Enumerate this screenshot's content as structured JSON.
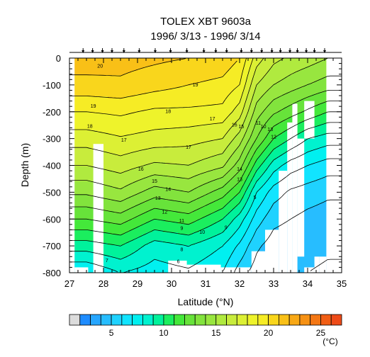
{
  "chart_data": {
    "type": "heatmap",
    "title": "TOLEX XBT 9603a",
    "subtitle": "1996/ 3/13 - 1996/ 3/14",
    "xlabel": "Latitude (°N)",
    "ylabel": "Depth (m)",
    "xlim": [
      27,
      35
    ],
    "ylim": [
      -800,
      0
    ],
    "x_ticks": [
      "27",
      "28",
      "29",
      "30",
      "31",
      "32",
      "33",
      "34",
      "35"
    ],
    "y_ticks": [
      "0",
      "-100",
      "-200",
      "-300",
      "-400",
      "-500",
      "-600",
      "-700",
      "-800"
    ],
    "colorbar": {
      "unit": "(°C)",
      "range": [
        2,
        27
      ],
      "tick_values": [
        5,
        10,
        15,
        20,
        25
      ],
      "tick_labels": [
        "5",
        "10",
        "15",
        "20",
        "25"
      ]
    },
    "stations_lat": [
      27.4,
      27.68,
      27.97,
      28.25,
      28.6,
      29.05,
      29.52,
      29.97,
      30.45,
      30.95,
      31.3,
      31.62,
      32.05,
      32.35,
      32.65,
      32.95,
      33.2,
      33.48,
      33.7,
      33.96,
      34.2,
      34.5
    ],
    "temperature_columns": [
      {
        "lat": 27.5,
        "T": [
          21.5,
          20.7,
          19.0,
          17.5,
          16.0,
          14.2,
          12.0,
          9.5,
          7.0
        ]
      },
      {
        "lat": 28.5,
        "T": [
          21.4,
          20.8,
          19.2,
          17.9,
          16.5,
          14.8,
          12.5,
          10.0,
          8.0
        ]
      },
      {
        "lat": 29.5,
        "T": [
          21.2,
          20.4,
          18.8,
          17.6,
          15.8,
          13.5,
          11.0,
          8.5,
          7.5
        ]
      },
      {
        "lat": 30.5,
        "T": [
          21.0,
          20.0,
          18.8,
          17.4,
          16.0,
          14.0,
          11.5,
          9.0,
          7.8
        ]
      },
      {
        "lat": 31.5,
        "T": [
          20.7,
          19.7,
          18.7,
          17.0,
          15.2,
          12.5,
          10.0,
          8.0,
          7.0
        ]
      },
      {
        "lat": 32.0,
        "T": [
          20.0,
          19.0,
          17.5,
          15.5,
          13.5,
          11.0,
          8.5,
          6.8,
          5.5
        ]
      },
      {
        "lat": 32.5,
        "T": [
          17.5,
          16.0,
          14.5,
          13.0,
          10.5,
          8.0,
          6.5,
          5.2,
          4.5
        ]
      },
      {
        "lat": 33.0,
        "T": [
          16.3,
          15.0,
          13.2,
          11.0,
          8.5,
          6.5,
          5.3,
          4.5,
          4.0
        ]
      },
      {
        "lat": 33.5,
        "T": [
          15.8,
          14.5,
          12.5,
          10.0,
          7.5,
          5.8,
          5.0,
          4.3,
          4.0
        ]
      },
      {
        "lat": 34.0,
        "T": [
          15.5,
          14.0,
          11.8,
          9.0,
          7.0,
          5.5,
          4.7,
          4.2,
          4.0
        ]
      },
      {
        "lat": 34.6,
        "T": [
          15.0,
          13.5,
          11.0,
          8.5,
          6.5,
          5.2,
          4.5,
          4.1,
          3.9
        ]
      }
    ],
    "depth_levels": [
      0,
      -100,
      -200,
      -300,
      -400,
      -500,
      -600,
      -700,
      -800
    ],
    "masked_regions": [
      {
        "lat": [
          27.0,
          27.15
        ],
        "depth": [
          0,
          -800
        ]
      },
      {
        "lat": [
          34.55,
          35.0
        ],
        "depth": [
          0,
          -800
        ]
      },
      {
        "lat": [
          27.15,
          27.55
        ],
        "depth": [
          -780,
          -800
        ]
      },
      {
        "lat": [
          27.7,
          28.0
        ],
        "depth": [
          -320,
          -800
        ]
      },
      {
        "lat": [
          29.9,
          30.45
        ],
        "depth": [
          -755,
          -800
        ]
      },
      {
        "lat": [
          30.45,
          31.45
        ],
        "depth": [
          -770,
          -800
        ]
      },
      {
        "lat": [
          31.45,
          32.35
        ],
        "depth": [
          -780,
          -800
        ]
      },
      {
        "lat": [
          32.35,
          32.75
        ],
        "depth": [
          -720,
          -800
        ]
      },
      {
        "lat": [
          32.75,
          33.15
        ],
        "depth": [
          -640,
          -800
        ]
      },
      {
        "lat": [
          33.15,
          33.4
        ],
        "depth": [
          -420,
          -800
        ]
      },
      {
        "lat": [
          33.4,
          33.55
        ],
        "depth": [
          -240,
          -800
        ]
      },
      {
        "lat": [
          33.55,
          33.7
        ],
        "depth": [
          -170,
          -800
        ]
      },
      {
        "lat": [
          33.7,
          33.9
        ],
        "depth": [
          -300,
          -740
        ]
      },
      {
        "lat": [
          33.9,
          34.2
        ],
        "depth": [
          -160,
          -300
        ]
      },
      {
        "lat": [
          34.2,
          34.35
        ],
        "depth": [
          -740,
          -800
        ]
      },
      {
        "lat": [
          33.9,
          34.2
        ],
        "depth": [
          -780,
          -800
        ]
      },
      {
        "lat": [
          34.35,
          34.55
        ],
        "depth": [
          -740,
          -800
        ]
      }
    ],
    "contour_labels": [
      {
        "text": "20",
        "lat": 27.9,
        "depth": -35
      },
      {
        "text": "19",
        "lat": 30.7,
        "depth": -105
      },
      {
        "text": "19",
        "lat": 27.7,
        "depth": -185
      },
      {
        "text": "18",
        "lat": 29.9,
        "depth": -205
      },
      {
        "text": "18",
        "lat": 27.6,
        "depth": -260
      },
      {
        "text": "17",
        "lat": 28.6,
        "depth": -312
      },
      {
        "text": "17",
        "lat": 30.5,
        "depth": -338
      },
      {
        "text": "17",
        "lat": 31.2,
        "depth": -232
      },
      {
        "text": "16",
        "lat": 29.1,
        "depth": -420
      },
      {
        "text": "16",
        "lat": 31.85,
        "depth": -255
      },
      {
        "text": "15",
        "lat": 32.05,
        "depth": -262
      },
      {
        "text": "15",
        "lat": 29.5,
        "depth": -465
      },
      {
        "text": "14",
        "lat": 29.9,
        "depth": -495
      },
      {
        "text": "14",
        "lat": 32.0,
        "depth": -420
      },
      {
        "text": "13",
        "lat": 32.0,
        "depth": -458
      },
      {
        "text": "13",
        "lat": 29.6,
        "depth": -528
      },
      {
        "text": "12",
        "lat": 29.8,
        "depth": -580
      },
      {
        "text": "11",
        "lat": 30.3,
        "depth": -612
      },
      {
        "text": "10",
        "lat": 30.9,
        "depth": -655
      },
      {
        "text": "9",
        "lat": 30.3,
        "depth": -640
      },
      {
        "text": "9",
        "lat": 31.6,
        "depth": -638
      },
      {
        "text": "8",
        "lat": 30.3,
        "depth": -720
      },
      {
        "text": "7",
        "lat": 28.1,
        "depth": -760
      },
      {
        "text": "6",
        "lat": 30.2,
        "depth": -765
      },
      {
        "text": "5",
        "lat": 32.45,
        "depth": -525
      },
      {
        "text": "11",
        "lat": 32.55,
        "depth": -248
      },
      {
        "text": "10",
        "lat": 32.7,
        "depth": -262
      },
      {
        "text": "13",
        "lat": 32.9,
        "depth": -272
      },
      {
        "text": "12",
        "lat": 33.0,
        "depth": -300
      }
    ],
    "grid": false,
    "legend": "none"
  },
  "colors": {
    "background": "#ffffff",
    "axis": "#000000",
    "contour": "#000000",
    "mask": "#ffffff",
    "missing": "#dcdcdc"
  },
  "palette": [
    "#1e8cff",
    "#26a6ff",
    "#27bdff",
    "#1fd2ff",
    "#11e4ff",
    "#00f0f0",
    "#00f2cf",
    "#00f29b",
    "#1bee5e",
    "#44e83a",
    "#67e33a",
    "#82e33d",
    "#98e63f",
    "#b0ea3f",
    "#c8ec3c",
    "#dcf034",
    "#eef32b",
    "#f6ec25",
    "#f9d61c",
    "#f9c017",
    "#f8a815",
    "#f69114",
    "#f47714",
    "#f15e15",
    "#ee4b18"
  ]
}
